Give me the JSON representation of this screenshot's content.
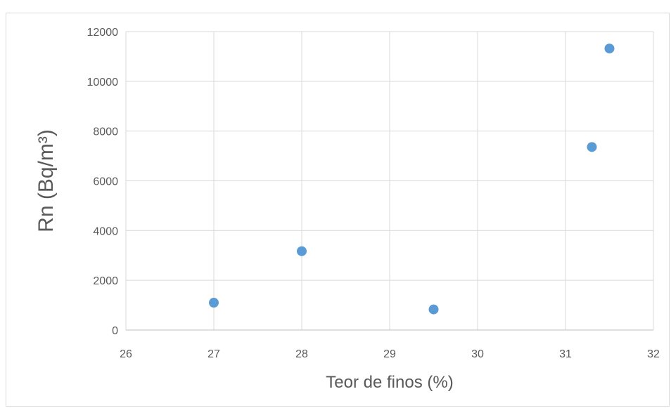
{
  "chart_data": {
    "type": "scatter",
    "title": "",
    "xlabel": "Teor de finos (%)",
    "ylabel": "Rn (Bq/m³)",
    "xlim": [
      26,
      32
    ],
    "ylim": [
      0,
      12000
    ],
    "x_ticks": [
      "26",
      "27",
      "28",
      "29",
      "30",
      "31",
      "32"
    ],
    "y_ticks": [
      "0",
      "2000",
      "4000",
      "6000",
      "8000",
      "10000",
      "12000"
    ],
    "grid": true,
    "legend": "none",
    "marker_color": "#5b9bd5",
    "series": [
      {
        "points": [
          {
            "x": 27,
            "y": 1100
          },
          {
            "x": 28,
            "y": 3170
          },
          {
            "x": 29.5,
            "y": 830
          },
          {
            "x": 31.3,
            "y": 7360
          },
          {
            "x": 31.5,
            "y": 11320
          }
        ]
      }
    ]
  }
}
